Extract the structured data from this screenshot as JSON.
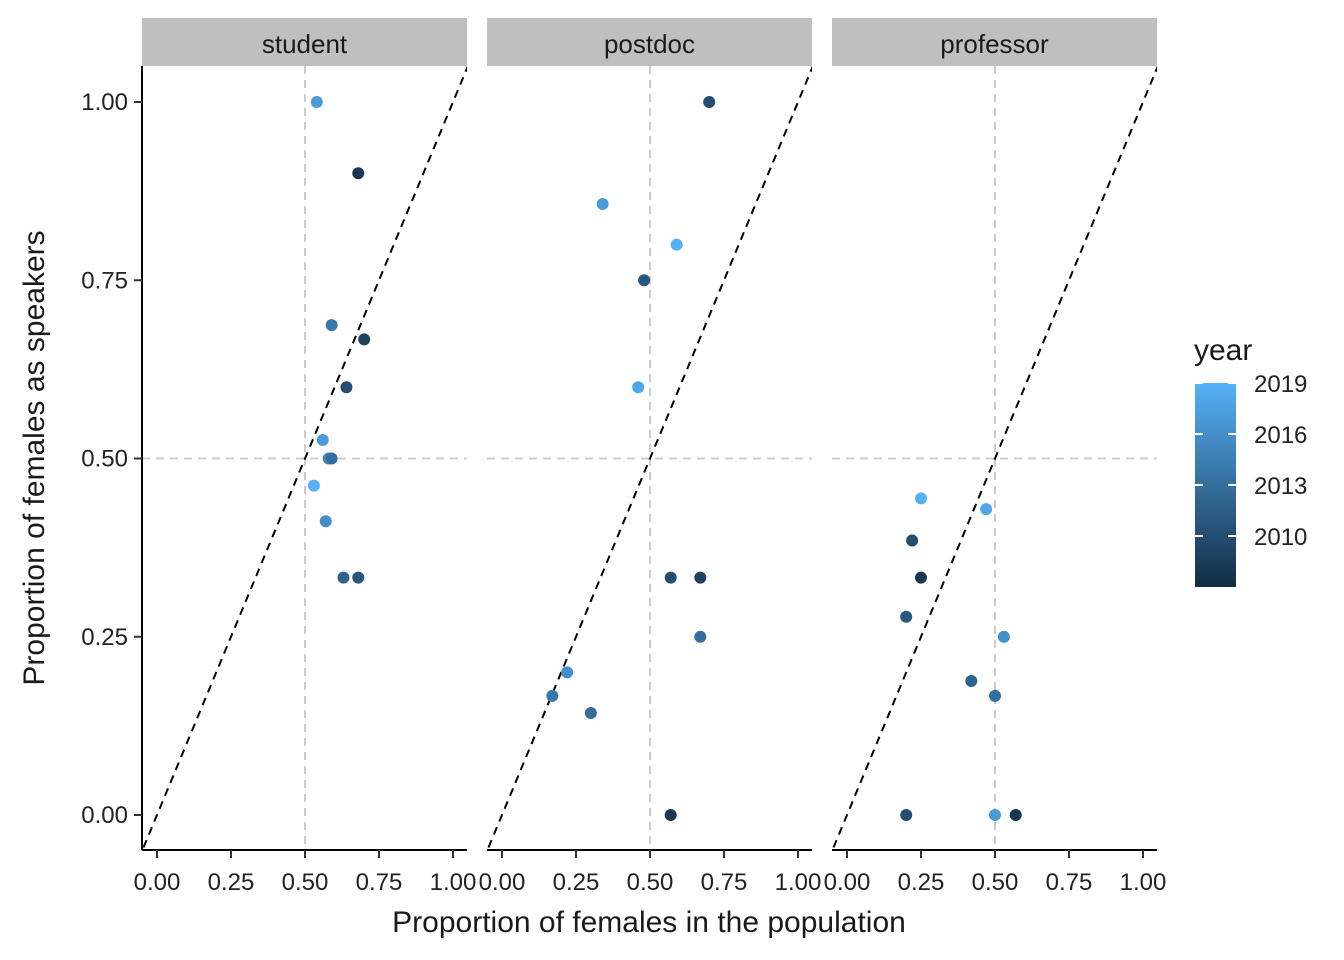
{
  "chart_data": {
    "type": "scatter",
    "xlabel": "Proportion of females in the population",
    "ylabel": "Proportion of females as speakers",
    "xlim": [
      -0.05,
      1.05
    ],
    "ylim": [
      -0.05,
      1.05
    ],
    "x_ticks": [
      "0.00",
      "0.25",
      "0.50",
      "0.75",
      "1.00"
    ],
    "y_ticks": [
      "0.00",
      "0.25",
      "0.50",
      "0.75",
      "1.00"
    ],
    "reference_lines": {
      "vertical_dashed_x": 0.5,
      "horizontal_dashed_y": 0.5,
      "diagonal_dashed": "y = x"
    },
    "grid": false,
    "color_scale": {
      "variable": "year",
      "min": 2007,
      "max": 2019,
      "low_color": "#132B43",
      "high_color": "#56B1F7",
      "breaks": [
        "2019",
        "2016",
        "2013",
        "2010"
      ],
      "break_values": [
        2019,
        2016,
        2013,
        2010
      ]
    },
    "legend": {
      "title": "year",
      "position": "right"
    },
    "facets": [
      {
        "label": "student",
        "points": [
          {
            "x": 0.54,
            "y": 1.0,
            "year": 2017
          },
          {
            "x": 0.68,
            "y": 0.9,
            "year": 2008
          },
          {
            "x": 0.59,
            "y": 0.687,
            "year": 2014
          },
          {
            "x": 0.7,
            "y": 0.667,
            "year": 2009
          },
          {
            "x": 0.64,
            "y": 0.6,
            "year": 2010
          },
          {
            "x": 0.56,
            "y": 0.526,
            "year": 2017
          },
          {
            "x": 0.58,
            "y": 0.5,
            "year": 2015
          },
          {
            "x": 0.59,
            "y": 0.5,
            "year": 2013
          },
          {
            "x": 0.53,
            "y": 0.462,
            "year": 2019
          },
          {
            "x": 0.57,
            "y": 0.412,
            "year": 2016
          },
          {
            "x": 0.63,
            "y": 0.333,
            "year": 2012
          },
          {
            "x": 0.68,
            "y": 0.333,
            "year": 2011
          }
        ]
      },
      {
        "label": "postdoc",
        "points": [
          {
            "x": 0.7,
            "y": 1.0,
            "year": 2010
          },
          {
            "x": 0.34,
            "y": 0.857,
            "year": 2017
          },
          {
            "x": 0.59,
            "y": 0.8,
            "year": 2019
          },
          {
            "x": 0.48,
            "y": 0.75,
            "year": 2011
          },
          {
            "x": 0.46,
            "y": 0.6,
            "year": 2018
          },
          {
            "x": 0.57,
            "y": 0.333,
            "year": 2010
          },
          {
            "x": 0.67,
            "y": 0.333,
            "year": 2009
          },
          {
            "x": 0.67,
            "y": 0.25,
            "year": 2013
          },
          {
            "x": 0.22,
            "y": 0.2,
            "year": 2016
          },
          {
            "x": 0.17,
            "y": 0.167,
            "year": 2014
          },
          {
            "x": 0.3,
            "y": 0.143,
            "year": 2013
          },
          {
            "x": 0.57,
            "y": 0.0,
            "year": 2008
          }
        ]
      },
      {
        "label": "professor",
        "points": [
          {
            "x": 0.25,
            "y": 0.444,
            "year": 2019
          },
          {
            "x": 0.47,
            "y": 0.429,
            "year": 2018
          },
          {
            "x": 0.22,
            "y": 0.385,
            "year": 2010
          },
          {
            "x": 0.25,
            "y": 0.333,
            "year": 2008
          },
          {
            "x": 0.2,
            "y": 0.278,
            "year": 2011
          },
          {
            "x": 0.53,
            "y": 0.25,
            "year": 2016
          },
          {
            "x": 0.42,
            "y": 0.188,
            "year": 2012
          },
          {
            "x": 0.5,
            "y": 0.167,
            "year": 2013
          },
          {
            "x": 0.2,
            "y": 0.0,
            "year": 2010
          },
          {
            "x": 0.5,
            "y": 0.0,
            "year": 2017
          },
          {
            "x": 0.57,
            "y": 0.0,
            "year": 2008
          }
        ]
      }
    ]
  }
}
